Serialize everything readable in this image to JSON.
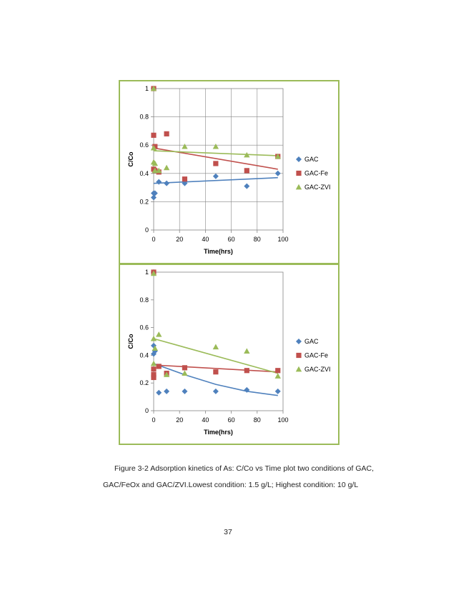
{
  "caption": {
    "line1": "Figure 3-2 Adsorption kinetics of As: C/Co vs Time plot two conditions of GAC,",
    "line2": "GAC/FeOx and GAC/ZVI.Lowest condition: 1.5 g/L; Highest condition: 10 g/L"
  },
  "page_number": "37",
  "colors": {
    "GAC": "#4F81BD",
    "GAC-Fe": "#C0504D",
    "GAC-ZVI": "#9BBB59",
    "border": "#9BBB59",
    "grid": "#868686"
  },
  "chart_data": [
    {
      "type": "scatter",
      "xlabel": "Time(hrs)",
      "ylabel": "C/Co",
      "xlim": [
        0,
        100
      ],
      "ylim": [
        0,
        1
      ],
      "x_ticks": [
        "0",
        "20",
        "40",
        "60",
        "80",
        "100"
      ],
      "y_ticks": [
        "0",
        "0.2",
        "0.4",
        "0.6",
        "0.8",
        "1"
      ],
      "grid": true,
      "legend_position": "right",
      "series": [
        {
          "name": "GAC",
          "marker": "diamond",
          "points": [
            [
              0,
              1.0
            ],
            [
              0,
              0.23
            ],
            [
              0,
              0.26
            ],
            [
              1,
              0.26
            ],
            [
              4,
              0.34
            ],
            [
              10,
              0.33
            ],
            [
              24,
              0.33
            ],
            [
              48,
              0.38
            ],
            [
              72,
              0.31
            ],
            [
              96,
              0.4
            ]
          ],
          "trend": [
            [
              0,
              0.33
            ],
            [
              96,
              0.37
            ]
          ]
        },
        {
          "name": "GAC-Fe",
          "marker": "square",
          "points": [
            [
              0,
              1.0
            ],
            [
              0,
              0.67
            ],
            [
              1,
              0.59
            ],
            [
              0,
              0.43
            ],
            [
              1,
              0.42
            ],
            [
              4,
              0.41
            ],
            [
              10,
              0.68
            ],
            [
              24,
              0.36
            ],
            [
              48,
              0.47
            ],
            [
              72,
              0.42
            ],
            [
              96,
              0.52
            ]
          ],
          "trend": [
            [
              0,
              0.58
            ],
            [
              96,
              0.43
            ]
          ]
        },
        {
          "name": "GAC-ZVI",
          "marker": "triangle",
          "points": [
            [
              0,
              1.0
            ],
            [
              0,
              0.58
            ],
            [
              0,
              0.48
            ],
            [
              1,
              0.47
            ],
            [
              1,
              0.42
            ],
            [
              4,
              0.42
            ],
            [
              10,
              0.44
            ],
            [
              24,
              0.59
            ],
            [
              48,
              0.59
            ],
            [
              72,
              0.53
            ],
            [
              96,
              0.52
            ]
          ],
          "trend": [
            [
              0,
              0.56
            ],
            [
              96,
              0.525
            ]
          ]
        }
      ]
    },
    {
      "type": "scatter",
      "xlabel": "Time(hrs)",
      "ylabel": "C/Co",
      "xlim": [
        0,
        100
      ],
      "ylim": [
        0,
        1
      ],
      "x_ticks": [
        "0",
        "20",
        "40",
        "60",
        "80",
        "100"
      ],
      "y_ticks": [
        "0",
        "0.2",
        "0.4",
        "0.6",
        "0.8",
        "1"
      ],
      "grid": false,
      "legend_position": "right",
      "series": [
        {
          "name": "GAC",
          "marker": "diamond",
          "points": [
            [
              0,
              1.0
            ],
            [
              0,
              0.47
            ],
            [
              1,
              0.43
            ],
            [
              0,
              0.41
            ],
            [
              4,
              0.13
            ],
            [
              10,
              0.14
            ],
            [
              24,
              0.14
            ],
            [
              48,
              0.14
            ],
            [
              72,
              0.15
            ],
            [
              96,
              0.14
            ]
          ],
          "trend": [
            [
              0,
              0.34
            ],
            [
              24,
              0.26
            ],
            [
              48,
              0.19
            ],
            [
              72,
              0.14
            ],
            [
              96,
              0.11
            ]
          ]
        },
        {
          "name": "GAC-Fe",
          "marker": "square",
          "points": [
            [
              0,
              1.0
            ],
            [
              0,
              0.3
            ],
            [
              0,
              0.26
            ],
            [
              0,
              0.24
            ],
            [
              4,
              0.32
            ],
            [
              10,
              0.27
            ],
            [
              24,
              0.31
            ],
            [
              48,
              0.28
            ],
            [
              72,
              0.29
            ],
            [
              96,
              0.29
            ]
          ],
          "trend": [
            [
              0,
              0.33
            ],
            [
              96,
              0.28
            ]
          ]
        },
        {
          "name": "GAC-ZVI",
          "marker": "triangle",
          "points": [
            [
              0,
              0.99
            ],
            [
              0,
              0.52
            ],
            [
              1,
              0.45
            ],
            [
              0,
              0.34
            ],
            [
              4,
              0.55
            ],
            [
              10,
              0.26
            ],
            [
              24,
              0.27
            ],
            [
              48,
              0.46
            ],
            [
              72,
              0.43
            ],
            [
              96,
              0.25
            ]
          ],
          "trend": [
            [
              0,
              0.52
            ],
            [
              96,
              0.27
            ]
          ]
        }
      ]
    }
  ]
}
